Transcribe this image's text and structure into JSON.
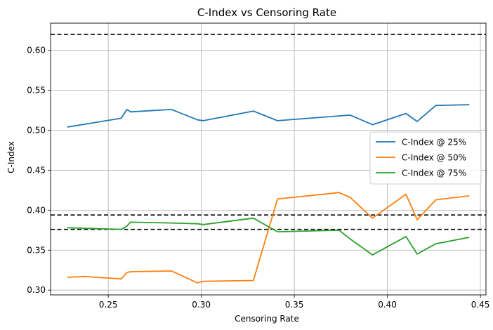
{
  "chart_data": {
    "type": "line",
    "title": "C-Index vs Censoring Rate",
    "xlabel": "Censoring Rate",
    "ylabel": "C-Index",
    "xlim": [
      0.219,
      0.453
    ],
    "ylim": [
      0.294,
      0.634
    ],
    "xticks": [
      0.25,
      0.3,
      0.35,
      0.4,
      0.45
    ],
    "xtick_labels": [
      "0.25",
      "0.30",
      "0.35",
      "0.40",
      "0.45"
    ],
    "yticks": [
      0.3,
      0.35,
      0.4,
      0.45,
      0.5,
      0.55,
      0.6
    ],
    "ytick_labels": [
      "0.30",
      "0.35",
      "0.40",
      "0.45",
      "0.50",
      "0.55",
      "0.60"
    ],
    "grid": true,
    "legend_position": "center-right",
    "hlines": [
      0.62,
      0.394,
      0.376
    ],
    "hline_color": "#000000",
    "series": [
      {
        "name": "C-Index @ 25%",
        "color": "#1f77b4",
        "x": [
          0.228,
          0.257,
          0.26,
          0.262,
          0.284,
          0.298,
          0.301,
          0.328,
          0.341,
          0.38,
          0.392,
          0.41,
          0.416,
          0.426,
          0.444
        ],
        "y": [
          0.504,
          0.515,
          0.526,
          0.523,
          0.526,
          0.513,
          0.512,
          0.524,
          0.512,
          0.519,
          0.507,
          0.521,
          0.511,
          0.531,
          0.532
        ]
      },
      {
        "name": "C-Index @ 50%",
        "color": "#ff7f0e",
        "x": [
          0.228,
          0.237,
          0.257,
          0.26,
          0.262,
          0.284,
          0.298,
          0.301,
          0.328,
          0.341,
          0.374,
          0.38,
          0.392,
          0.41,
          0.416,
          0.426,
          0.444
        ],
        "y": [
          0.316,
          0.317,
          0.314,
          0.322,
          0.323,
          0.324,
          0.309,
          0.311,
          0.312,
          0.414,
          0.422,
          0.416,
          0.39,
          0.42,
          0.388,
          0.413,
          0.418
        ]
      },
      {
        "name": "C-Index @ 75%",
        "color": "#2ca02c",
        "x": [
          0.228,
          0.257,
          0.26,
          0.262,
          0.284,
          0.298,
          0.301,
          0.328,
          0.341,
          0.374,
          0.38,
          0.392,
          0.41,
          0.416,
          0.426,
          0.444
        ],
        "y": [
          0.378,
          0.376,
          0.38,
          0.385,
          0.384,
          0.383,
          0.382,
          0.39,
          0.373,
          0.375,
          0.364,
          0.344,
          0.367,
          0.345,
          0.358,
          0.366
        ]
      }
    ]
  }
}
